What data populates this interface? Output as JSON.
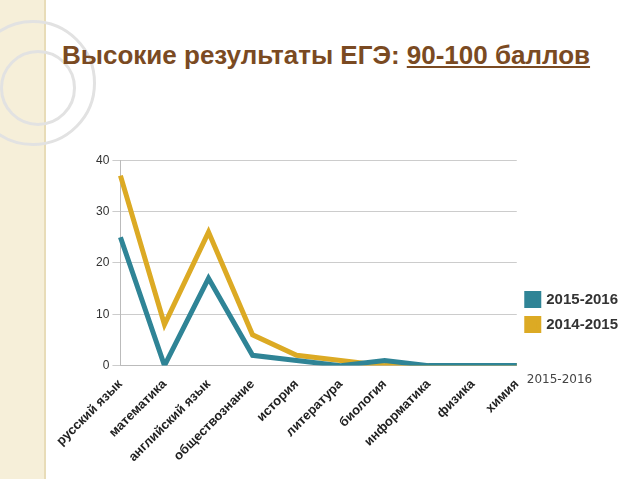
{
  "chart_data": {
    "type": "line",
    "title": "Высокие результаты ЕГЭ: 90-100 баллов",
    "categories": [
      "русский язык",
      "математика",
      "английский язык",
      "обществознание",
      "история",
      "литература",
      "биология",
      "информатика",
      "физика",
      "химия"
    ],
    "series": [
      {
        "name": "2015-2016",
        "color": "#2f8496",
        "values": [
          25,
          0,
          17,
          2,
          1,
          0,
          1,
          0,
          0,
          0
        ]
      },
      {
        "name": "2014-2015",
        "color": "#dcaa24",
        "values": [
          37,
          8,
          26,
          6,
          2,
          1,
          0,
          0,
          0,
          0
        ]
      }
    ],
    "ylim": [
      0,
      40
    ],
    "yticks": [
      0,
      10,
      20,
      30,
      40
    ],
    "grid": true,
    "legend": "right",
    "annotations": [
      "2015-2016"
    ]
  }
}
